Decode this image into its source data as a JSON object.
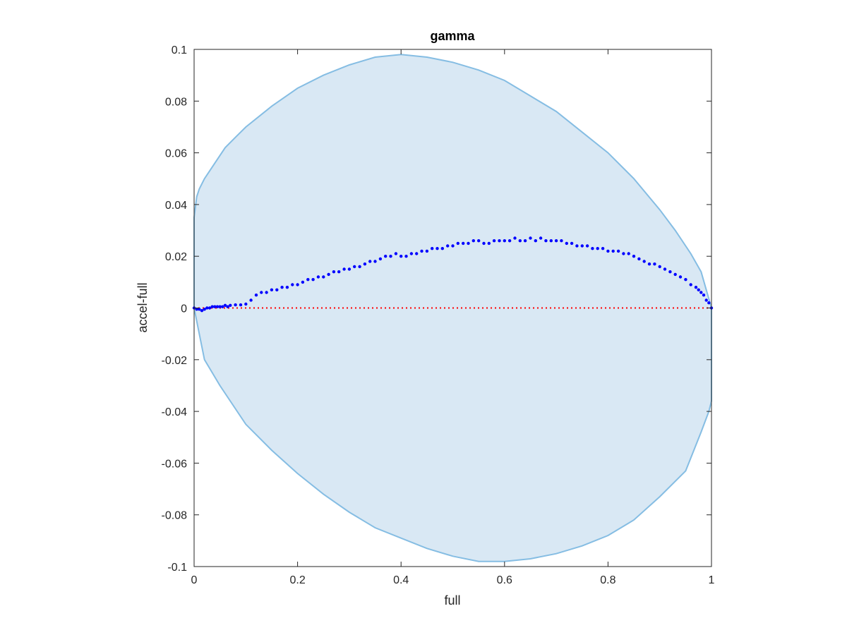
{
  "chart_data": {
    "type": "scatter",
    "title": "gamma",
    "xlabel": "full",
    "ylabel": "accel-full",
    "xlim": [
      0,
      1
    ],
    "ylim": [
      -0.1,
      0.1
    ],
    "x_ticks": [
      0,
      0.2,
      0.4,
      0.6,
      0.8,
      1
    ],
    "x_tick_labels": [
      "0",
      "0.2",
      "0.4",
      "0.6",
      "0.8",
      "1"
    ],
    "y_ticks": [
      0.1,
      0.08,
      0.06,
      0.04,
      0.02,
      0,
      -0.02,
      -0.04,
      -0.06,
      -0.08,
      -0.1
    ],
    "y_tick_labels": [
      "0.1",
      "0.08",
      "0.06",
      "0.04",
      "0.02",
      "0",
      "-0.02",
      "-0.04",
      "-0.06",
      "-0.08",
      "-0.1"
    ],
    "grid": false,
    "region": {
      "upper": [
        [
          0,
          0.035
        ],
        [
          0.005,
          0.043
        ],
        [
          0.01,
          0.046
        ],
        [
          0.02,
          0.05
        ],
        [
          0.04,
          0.056
        ],
        [
          0.06,
          0.062
        ],
        [
          0.08,
          0.066
        ],
        [
          0.1,
          0.07
        ],
        [
          0.15,
          0.078
        ],
        [
          0.2,
          0.085
        ],
        [
          0.25,
          0.09
        ],
        [
          0.3,
          0.094
        ],
        [
          0.35,
          0.097
        ],
        [
          0.4,
          0.098
        ],
        [
          0.45,
          0.097
        ],
        [
          0.5,
          0.095
        ],
        [
          0.55,
          0.092
        ],
        [
          0.6,
          0.088
        ],
        [
          0.65,
          0.082
        ],
        [
          0.7,
          0.076
        ],
        [
          0.75,
          0.068
        ],
        [
          0.8,
          0.06
        ],
        [
          0.85,
          0.05
        ],
        [
          0.9,
          0.038
        ],
        [
          0.93,
          0.03
        ],
        [
          0.96,
          0.021
        ],
        [
          0.98,
          0.014
        ],
        [
          1,
          0
        ]
      ],
      "lower": [
        [
          0,
          0
        ],
        [
          0.01,
          -0.01
        ],
        [
          0.02,
          -0.02
        ],
        [
          0.05,
          -0.03
        ],
        [
          0.1,
          -0.045
        ],
        [
          0.15,
          -0.055
        ],
        [
          0.2,
          -0.064
        ],
        [
          0.25,
          -0.072
        ],
        [
          0.3,
          -0.079
        ],
        [
          0.35,
          -0.085
        ],
        [
          0.4,
          -0.089
        ],
        [
          0.45,
          -0.093
        ],
        [
          0.5,
          -0.096
        ],
        [
          0.55,
          -0.098
        ],
        [
          0.6,
          -0.098
        ],
        [
          0.65,
          -0.097
        ],
        [
          0.7,
          -0.095
        ],
        [
          0.75,
          -0.092
        ],
        [
          0.8,
          -0.088
        ],
        [
          0.85,
          -0.082
        ],
        [
          0.9,
          -0.073
        ],
        [
          0.95,
          -0.063
        ],
        [
          0.98,
          -0.048
        ],
        [
          0.995,
          -0.04
        ],
        [
          1,
          -0.036
        ]
      ]
    },
    "reference_line": {
      "y": 0,
      "color": "#ff0000",
      "style": "dotted"
    },
    "series": [
      {
        "color": "#0000ff",
        "points": [
          [
            0,
            0
          ],
          [
            0.005,
            -0.0005
          ],
          [
            0.01,
            -0.0005
          ],
          [
            0.015,
            -0.001
          ],
          [
            0.02,
            -0.0005
          ],
          [
            0.025,
            0
          ],
          [
            0.03,
            0
          ],
          [
            0.035,
            0.0005
          ],
          [
            0.04,
            0.0005
          ],
          [
            0.045,
            0.0005
          ],
          [
            0.05,
            0.0005
          ],
          [
            0.055,
            0.0005
          ],
          [
            0.06,
            0.001
          ],
          [
            0.065,
            0.0005
          ],
          [
            0.07,
            0.001
          ],
          [
            0.08,
            0.0012
          ],
          [
            0.09,
            0.0012
          ],
          [
            0.1,
            0.0015
          ],
          [
            0.11,
            0.003
          ],
          [
            0.12,
            0.005
          ],
          [
            0.13,
            0.006
          ],
          [
            0.14,
            0.006
          ],
          [
            0.15,
            0.007
          ],
          [
            0.16,
            0.007
          ],
          [
            0.17,
            0.008
          ],
          [
            0.18,
            0.008
          ],
          [
            0.19,
            0.009
          ],
          [
            0.2,
            0.009
          ],
          [
            0.21,
            0.01
          ],
          [
            0.22,
            0.011
          ],
          [
            0.23,
            0.011
          ],
          [
            0.24,
            0.012
          ],
          [
            0.25,
            0.012
          ],
          [
            0.26,
            0.013
          ],
          [
            0.27,
            0.014
          ],
          [
            0.28,
            0.014
          ],
          [
            0.29,
            0.015
          ],
          [
            0.3,
            0.015
          ],
          [
            0.31,
            0.016
          ],
          [
            0.32,
            0.016
          ],
          [
            0.33,
            0.017
          ],
          [
            0.34,
            0.018
          ],
          [
            0.35,
            0.018
          ],
          [
            0.36,
            0.019
          ],
          [
            0.37,
            0.02
          ],
          [
            0.38,
            0.02
          ],
          [
            0.39,
            0.021
          ],
          [
            0.4,
            0.02
          ],
          [
            0.41,
            0.02
          ],
          [
            0.42,
            0.021
          ],
          [
            0.43,
            0.021
          ],
          [
            0.44,
            0.022
          ],
          [
            0.45,
            0.022
          ],
          [
            0.46,
            0.023
          ],
          [
            0.47,
            0.023
          ],
          [
            0.48,
            0.023
          ],
          [
            0.49,
            0.024
          ],
          [
            0.5,
            0.024
          ],
          [
            0.51,
            0.025
          ],
          [
            0.52,
            0.025
          ],
          [
            0.53,
            0.025
          ],
          [
            0.54,
            0.026
          ],
          [
            0.55,
            0.026
          ],
          [
            0.56,
            0.025
          ],
          [
            0.57,
            0.025
          ],
          [
            0.58,
            0.026
          ],
          [
            0.59,
            0.026
          ],
          [
            0.6,
            0.026
          ],
          [
            0.61,
            0.026
          ],
          [
            0.62,
            0.027
          ],
          [
            0.63,
            0.026
          ],
          [
            0.64,
            0.026
          ],
          [
            0.65,
            0.027
          ],
          [
            0.66,
            0.026
          ],
          [
            0.67,
            0.027
          ],
          [
            0.68,
            0.026
          ],
          [
            0.69,
            0.026
          ],
          [
            0.7,
            0.026
          ],
          [
            0.71,
            0.026
          ],
          [
            0.72,
            0.025
          ],
          [
            0.73,
            0.025
          ],
          [
            0.74,
            0.024
          ],
          [
            0.75,
            0.024
          ],
          [
            0.76,
            0.024
          ],
          [
            0.77,
            0.023
          ],
          [
            0.78,
            0.023
          ],
          [
            0.79,
            0.023
          ],
          [
            0.8,
            0.022
          ],
          [
            0.81,
            0.022
          ],
          [
            0.82,
            0.022
          ],
          [
            0.83,
            0.021
          ],
          [
            0.84,
            0.021
          ],
          [
            0.85,
            0.02
          ],
          [
            0.86,
            0.019
          ],
          [
            0.87,
            0.018
          ],
          [
            0.88,
            0.017
          ],
          [
            0.89,
            0.017
          ],
          [
            0.9,
            0.016
          ],
          [
            0.91,
            0.015
          ],
          [
            0.92,
            0.014
          ],
          [
            0.93,
            0.013
          ],
          [
            0.94,
            0.012
          ],
          [
            0.95,
            0.011
          ],
          [
            0.96,
            0.009
          ],
          [
            0.97,
            0.008
          ],
          [
            0.975,
            0.007
          ],
          [
            0.98,
            0.006
          ],
          [
            0.985,
            0.005
          ],
          [
            0.99,
            0.003
          ],
          [
            0.995,
            0.002
          ],
          [
            1,
            0
          ]
        ]
      }
    ]
  }
}
